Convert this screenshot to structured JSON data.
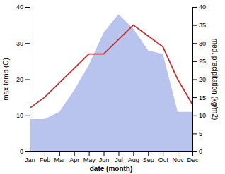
{
  "chart_data": {
    "type": "line",
    "categories": [
      "Jan",
      "Feb",
      "Mar",
      "Apr",
      "May",
      "Jun",
      "Jul",
      "Aug",
      "Sep",
      "Oct",
      "Nov",
      "Dec"
    ],
    "xlabel": "date (month)",
    "ylabel": "max temp (C)",
    "y2label": "med. precipitation (kg/m2)",
    "series": [
      {
        "type": "area",
        "color": "#b8c4ee",
        "axis": "y2",
        "values": [
          9,
          9,
          11,
          17,
          24,
          33,
          38,
          34,
          28,
          27,
          11,
          11
        ]
      },
      {
        "type": "line",
        "color": "#c03030",
        "values": [
          12,
          15,
          19,
          23,
          27,
          27,
          31,
          35,
          32,
          29,
          20,
          13
        ]
      }
    ],
    "ylim": [
      0,
      40
    ],
    "yticks": [
      0,
      10,
      20,
      30,
      40
    ],
    "y2lim": [
      0,
      40
    ],
    "y2ticks": [
      0,
      5,
      10,
      15,
      20,
      25,
      30,
      35,
      40
    ],
    "grid": false
  }
}
